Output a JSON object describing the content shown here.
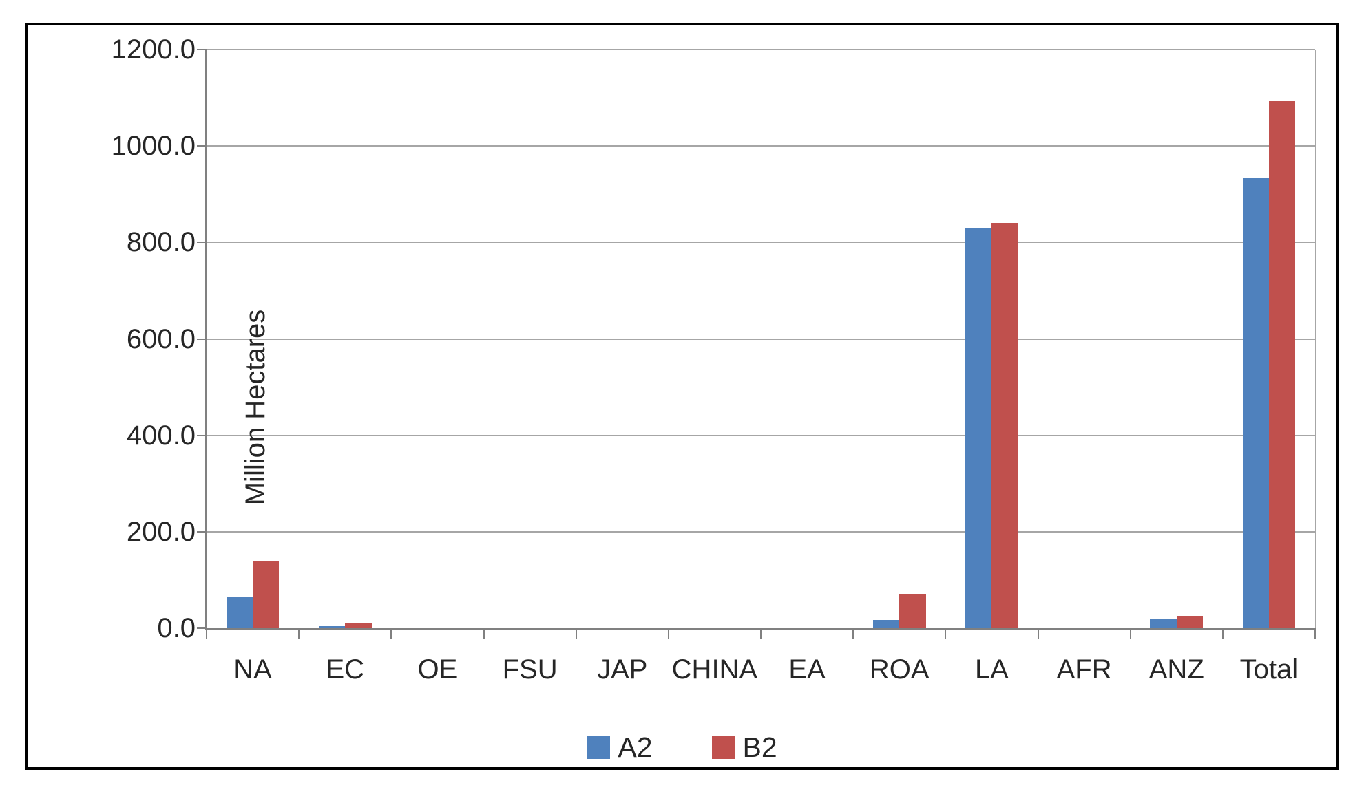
{
  "chart_data": {
    "type": "bar",
    "title": "",
    "xlabel": "",
    "ylabel": "Million Hectares",
    "categories": [
      "NA",
      "EC",
      "OE",
      "FSU",
      "JAP",
      "CHINA",
      "EA",
      "ROA",
      "LA",
      "AFR",
      "ANZ",
      "Total"
    ],
    "series": [
      {
        "name": "A2",
        "color": "#4F81BD",
        "values": [
          64,
          4,
          0,
          0,
          0,
          0,
          0,
          17,
          830,
          0,
          19,
          933
        ]
      },
      {
        "name": "B2",
        "color": "#C0504D",
        "values": [
          140,
          12,
          0,
          0,
          0,
          0,
          0,
          70,
          841,
          0,
          26,
          1093
        ]
      }
    ],
    "ylim": [
      0,
      1200
    ],
    "ytick_interval": 200,
    "ytick_labels": [
      "0.0",
      "200.0",
      "400.0",
      "600.0",
      "800.0",
      "1000.0",
      "1200.0"
    ],
    "grid": true,
    "legend_position": "bottom-center"
  },
  "colors": {
    "bar_a2": "#4F81BD",
    "bar_b2": "#C0504D",
    "gridline": "#A6A6A6",
    "axis": "#808080",
    "text": "#262626",
    "frame": "#000000",
    "background": "#ffffff"
  }
}
